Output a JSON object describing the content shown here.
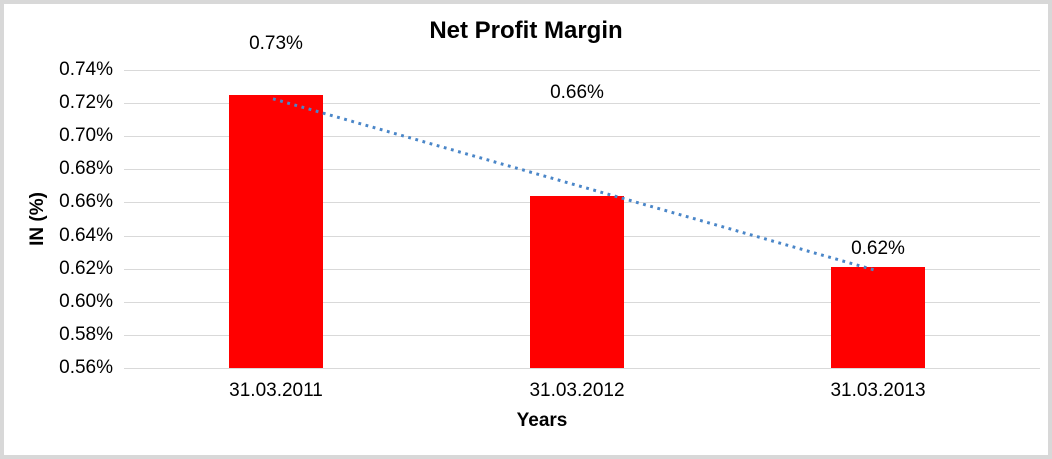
{
  "window": {
    "background": "#FFFFFF",
    "frame_border_color": "#D8D8D8"
  },
  "chart_data": {
    "type": "bar",
    "title": "Net Profit Margin",
    "xlabel": "Years",
    "ylabel": "IN (%)",
    "categories": [
      "31.03.2011",
      "31.03.2012",
      "31.03.2013"
    ],
    "values": [
      0.725,
      0.664,
      0.621
    ],
    "data_labels": [
      "0.73%",
      "0.66%",
      "0.62%"
    ],
    "ylim": [
      0.56,
      0.74
    ],
    "ytick_step": 0.02,
    "ytick_labels": [
      "0.74%",
      "0.72%",
      "0.70%",
      "0.68%",
      "0.66%",
      "0.64%",
      "0.62%",
      "0.60%",
      "0.58%",
      "0.56%"
    ],
    "grid": true,
    "legend": "none",
    "bar_color": "#FF0000",
    "gridline_color": "#D9D9D9",
    "text_color": "#000000",
    "trendline": {
      "type": "linear",
      "style": "dotted",
      "color": "#4A86C8",
      "from_point": "31.03.2011",
      "to_point": "31.03.2013"
    }
  }
}
